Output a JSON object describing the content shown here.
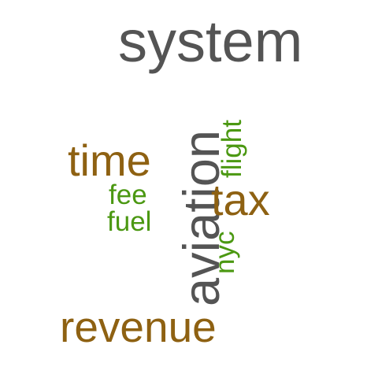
{
  "palette": {
    "gray": "#545454",
    "brown": "#8e6112",
    "green": "#4b9812"
  },
  "words": [
    {
      "text": "system",
      "color": "#545454",
      "orientation": "horizontal"
    },
    {
      "text": "aviation",
      "color": "#545454",
      "orientation": "vertical"
    },
    {
      "text": "time",
      "color": "#8e6112",
      "orientation": "horizontal"
    },
    {
      "text": "tax",
      "color": "#8e6112",
      "orientation": "horizontal"
    },
    {
      "text": "revenue",
      "color": "#8e6112",
      "orientation": "horizontal"
    },
    {
      "text": "flight",
      "color": "#4b9812",
      "orientation": "vertical"
    },
    {
      "text": "fee",
      "color": "#4b9812",
      "orientation": "horizontal"
    },
    {
      "text": "fuel",
      "color": "#4b9812",
      "orientation": "horizontal"
    },
    {
      "text": "nyc",
      "color": "#4b9812",
      "orientation": "vertical"
    }
  ]
}
